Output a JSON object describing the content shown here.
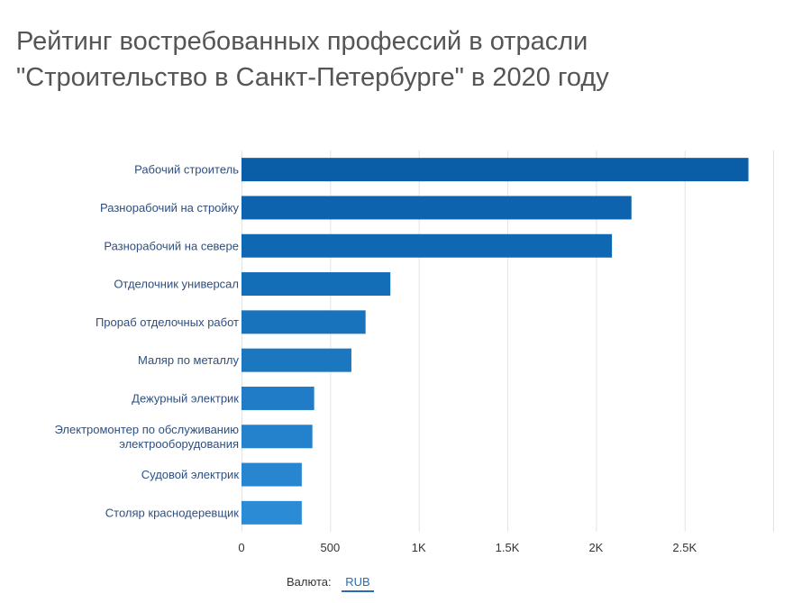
{
  "chart_data": {
    "type": "bar",
    "orientation": "horizontal",
    "title": "Рейтинг востребованных профессий в отрасли \"Строительство в Санкт-Петербурге\" в 2020 году",
    "title_lines": [
      "Рейтинг востребованных профессий в отрасли",
      "\"Строительство в Санкт-Петербурге\" в 2020 году"
    ],
    "categories": [
      [
        "Рабочий строитель"
      ],
      [
        "Разнорабочий на стройку"
      ],
      [
        "Разнорабочий на севере"
      ],
      [
        "Отделочник универсал"
      ],
      [
        "Прораб отделочных работ"
      ],
      [
        "Маляр по металлу"
      ],
      [
        "Дежурный электрик"
      ],
      [
        "Электромонтер по обслуживанию",
        "электрооборудования"
      ],
      [
        "Судовой электрик"
      ],
      [
        "Столяр краснодеревщик"
      ]
    ],
    "values": [
      2860,
      2200,
      2090,
      840,
      700,
      620,
      410,
      400,
      340,
      340
    ],
    "xlim": [
      0,
      3000
    ],
    "xticks": [
      0,
      500,
      1000,
      1500,
      2000,
      2500
    ],
    "xtick_labels": [
      "0",
      "500",
      "1K",
      "1.5K",
      "2K",
      "2.5K"
    ],
    "grid": true,
    "bar_colors": [
      "#0a5ea8",
      "#0d63ad",
      "#1068b2",
      "#146db7",
      "#1872bc",
      "#1c77c1",
      "#207cc6",
      "#2481cb",
      "#2886d0",
      "#2c8bd5"
    ]
  },
  "currency": {
    "label": "Валюта:",
    "value": "RUB"
  }
}
